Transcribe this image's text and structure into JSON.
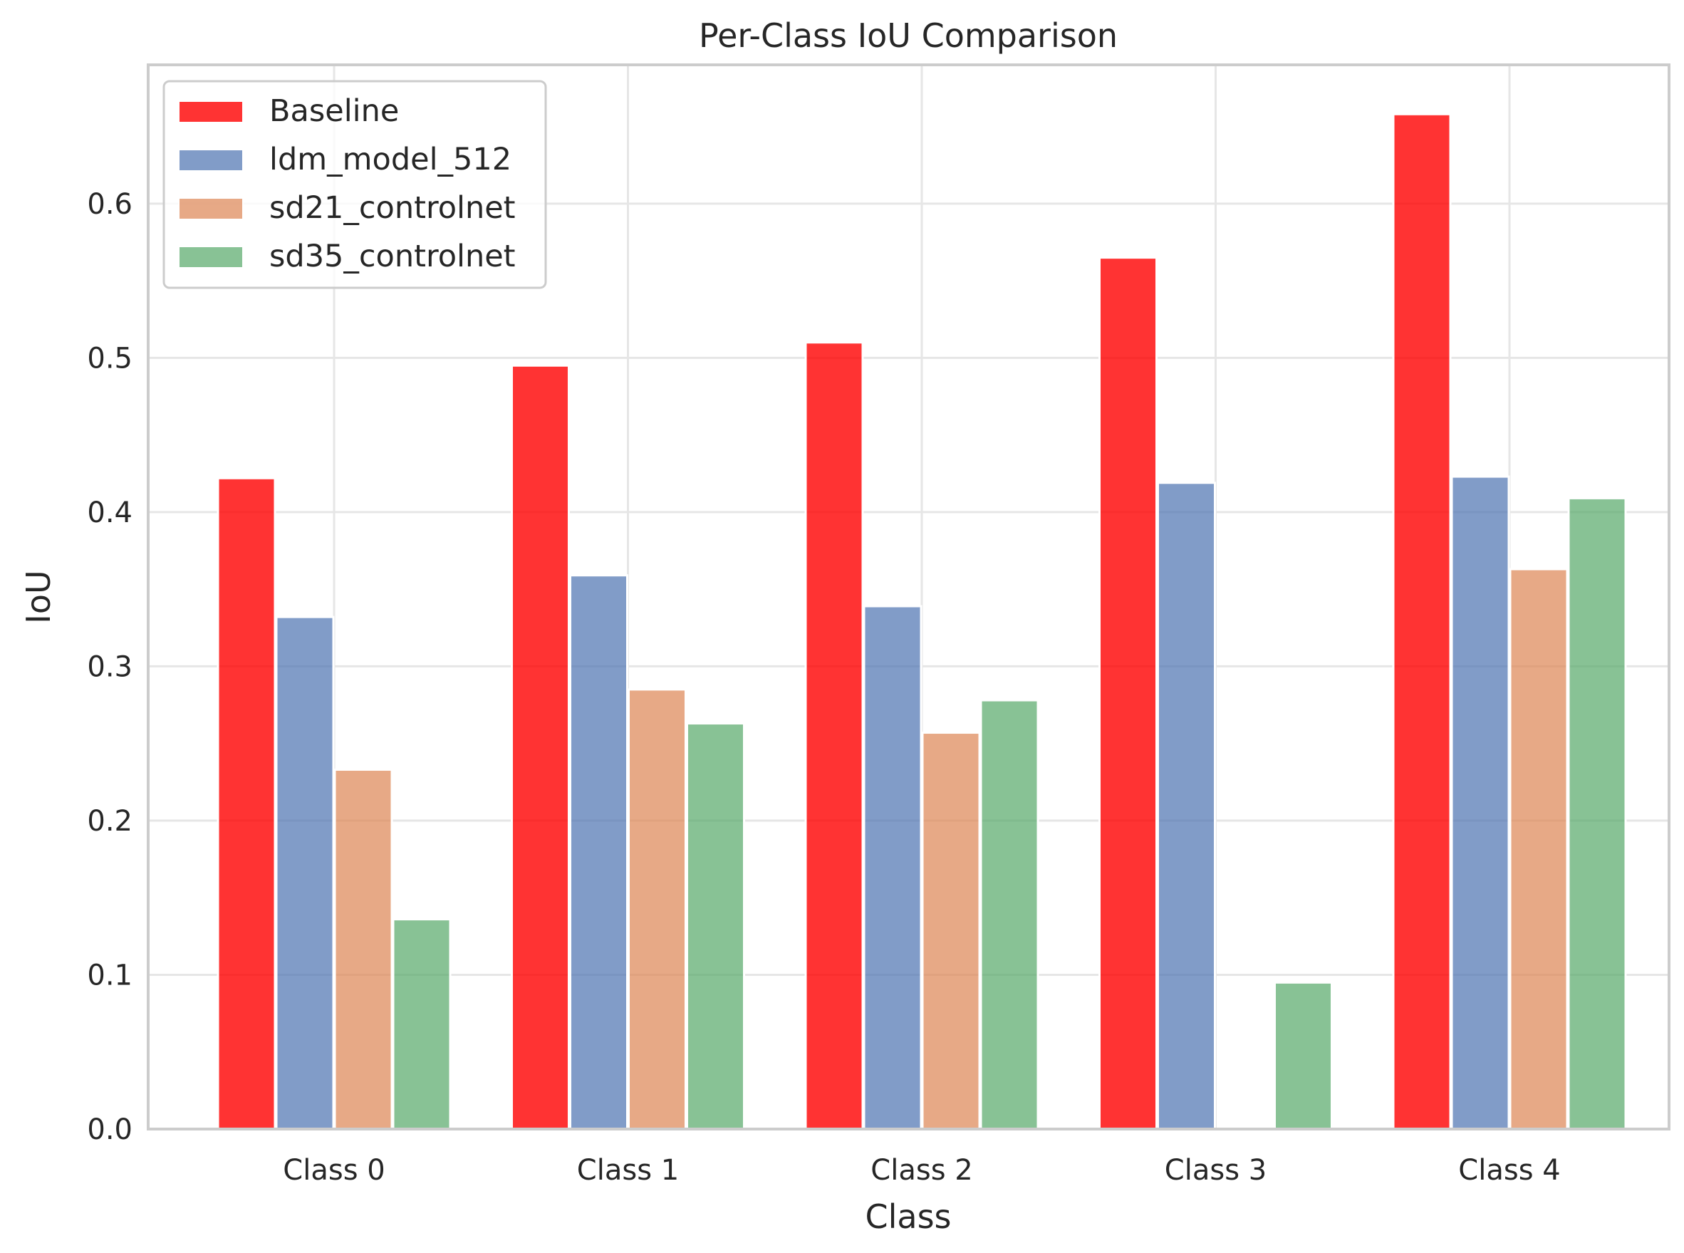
{
  "chart_data": {
    "type": "bar",
    "title": "Per-Class IoU Comparison",
    "xlabel": "Class",
    "ylabel": "IoU",
    "ylim": [
      0,
      0.69
    ],
    "yticks": [
      0.0,
      0.1,
      0.2,
      0.3,
      0.4,
      0.5,
      0.6
    ],
    "ytick_labels": [
      "0.0",
      "0.1",
      "0.2",
      "0.3",
      "0.4",
      "0.5",
      "0.6"
    ],
    "categories": [
      "Class 0",
      "Class 1",
      "Class 2",
      "Class 3",
      "Class 4"
    ],
    "grid": true,
    "legend_position": "top-left",
    "series": [
      {
        "name": "Baseline",
        "color": "#ff0000",
        "opacity": 0.8,
        "values": [
          0.422,
          0.495,
          0.51,
          0.565,
          0.658
        ]
      },
      {
        "name": "ldm_model_512",
        "color": "#4c72b0",
        "opacity": 0.7,
        "values": [
          0.332,
          0.359,
          0.339,
          0.419,
          0.423
        ]
      },
      {
        "name": "sd21_controlnet",
        "color": "#dd8452",
        "opacity": 0.7,
        "values": [
          0.233,
          0.285,
          0.257,
          0.0,
          0.363
        ]
      },
      {
        "name": "sd35_controlnet",
        "color": "#55a868",
        "opacity": 0.7,
        "values": [
          0.136,
          0.263,
          0.278,
          0.095,
          0.409
        ]
      }
    ]
  }
}
